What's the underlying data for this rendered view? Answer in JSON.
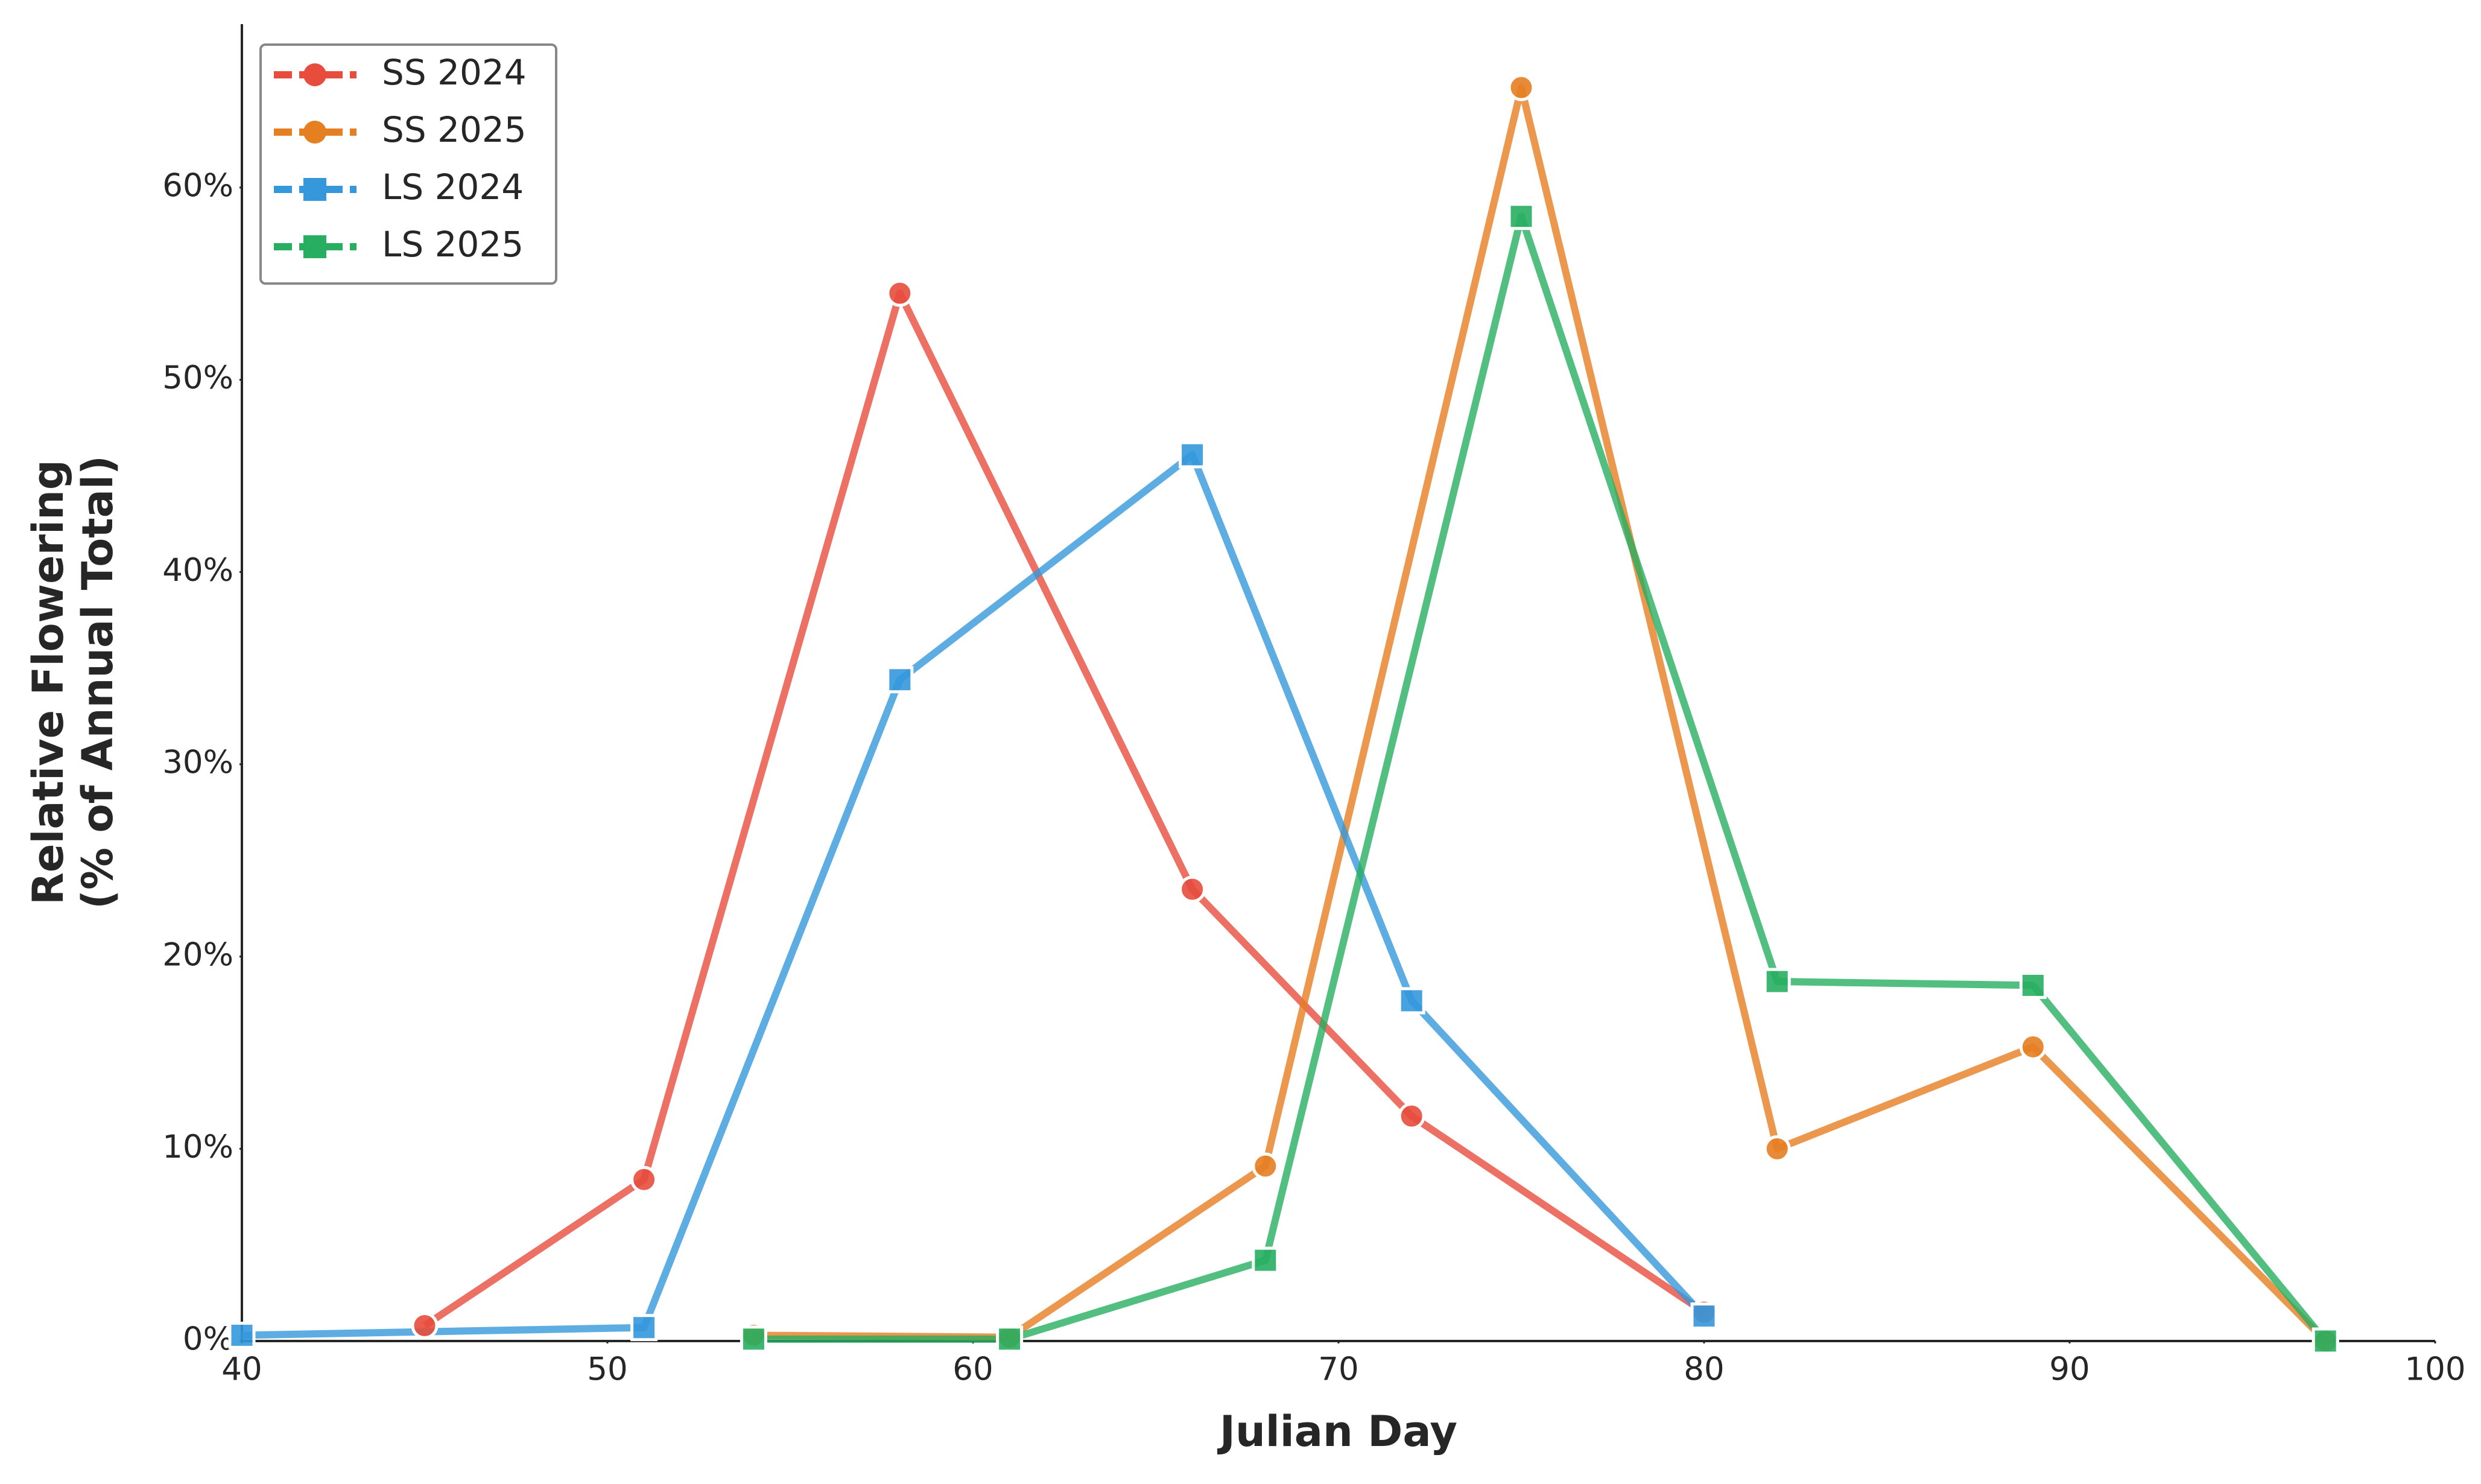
{
  "chart_data": {
    "type": "line",
    "xlabel": "Julian Day",
    "ylabel": [
      "Relative Flowering",
      "(% of Annual Total)"
    ],
    "xlim": [
      40,
      100
    ],
    "xticks": [
      40,
      50,
      60,
      70,
      80,
      90,
      100
    ],
    "ylim": [
      0,
      68.5
    ],
    "yticks": [
      {
        "value": 0,
        "label": "0%"
      },
      {
        "value": 10,
        "label": "10%"
      },
      {
        "value": 20,
        "label": "20%"
      },
      {
        "value": 30,
        "label": "30%"
      },
      {
        "value": 40,
        "label": "40%"
      },
      {
        "value": 50,
        "label": "50%"
      },
      {
        "value": 60,
        "label": "60%"
      }
    ],
    "legend": "upper left",
    "series": [
      {
        "name": "SS 2024",
        "color": "#e74c3c",
        "marker": "circle",
        "x": [
          45,
          51,
          58,
          66,
          72,
          80
        ],
        "values": [
          0.8,
          8.4,
          54.5,
          23.5,
          11.7,
          1.5
        ]
      },
      {
        "name": "SS 2025",
        "color": "#e67e22",
        "marker": "circle",
        "x": [
          54,
          61,
          68,
          75,
          82,
          89,
          97
        ],
        "values": [
          0.3,
          0.2,
          9.1,
          65.2,
          10.0,
          15.3,
          0
        ]
      },
      {
        "name": "LS 2024",
        "color": "#3498db",
        "marker": "square",
        "x": [
          40,
          51,
          58,
          66,
          72,
          80
        ],
        "values": [
          0.3,
          0.7,
          34.4,
          46.1,
          17.7,
          1.3
        ]
      },
      {
        "name": "LS 2025",
        "color": "#27ae60",
        "marker": "square",
        "x": [
          54,
          61,
          68,
          75,
          82,
          89,
          97
        ],
        "values": [
          0.1,
          0.1,
          4.2,
          58.5,
          18.7,
          18.5,
          0
        ]
      }
    ]
  }
}
